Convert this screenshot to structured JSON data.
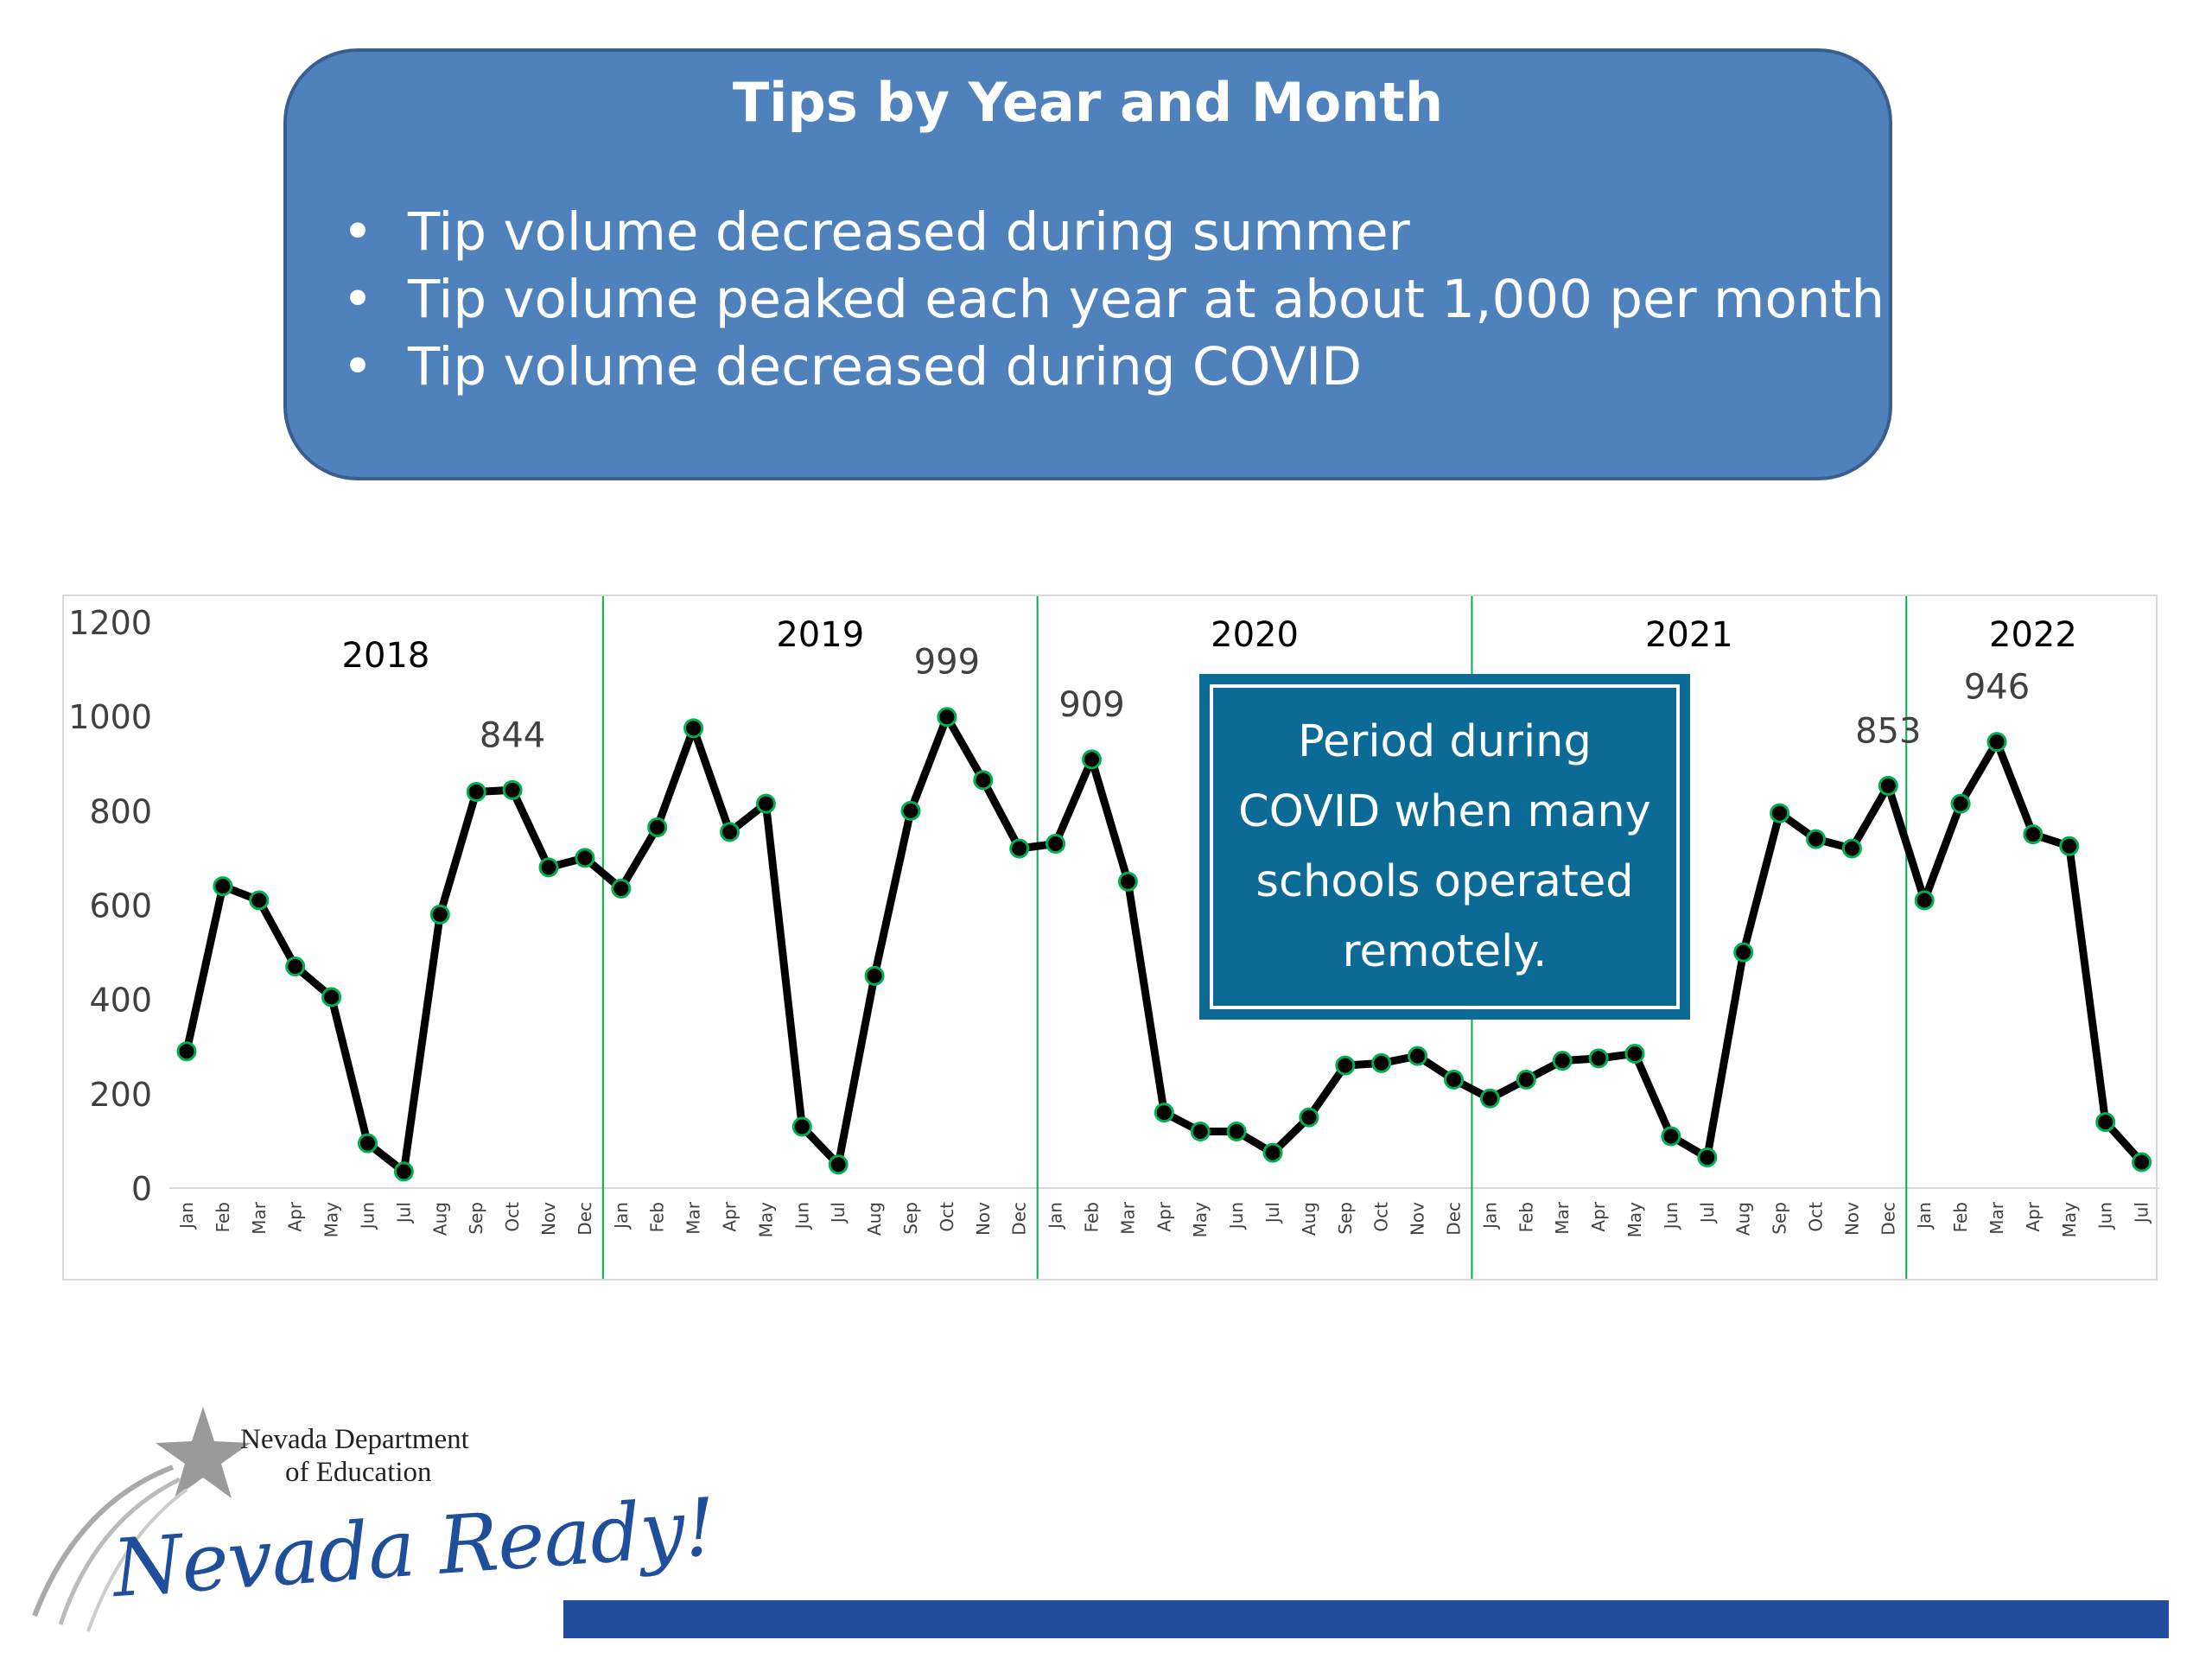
{
  "header": {
    "title": "Tips by Year and Month",
    "bullets": [
      "Tip volume decreased during summer",
      "Tip volume peaked each year at about 1,000 per month",
      "Tip volume decreased during COVID"
    ]
  },
  "annotation": {
    "text": "Period during COVID when many schools operated remotely."
  },
  "logo": {
    "org_line1": "Nevada Department",
    "org_line2": "of Education",
    "tagline": "Nevada Ready!"
  },
  "colors": {
    "header_fill": "#4f81bd",
    "annotation_fill": "#0b6a96",
    "line": "#000000",
    "marker": "#00b050",
    "year_divider": "#00b050",
    "footer_bar": "#244c9c"
  },
  "chart_data": {
    "type": "line",
    "title": "",
    "xlabel": "",
    "ylabel": "",
    "ylim": [
      0,
      1200
    ],
    "yticks": [
      0,
      200,
      400,
      600,
      800,
      1000,
      1200
    ],
    "grid": false,
    "years": [
      {
        "label": "2018",
        "start": 0
      },
      {
        "label": "2019",
        "start": 12
      },
      {
        "label": "2020",
        "start": 24
      },
      {
        "label": "2021",
        "start": 36
      },
      {
        "label": "2022",
        "start": 48
      }
    ],
    "categories": [
      "Jan",
      "Feb",
      "Mar",
      "Apr",
      "May",
      "Jun",
      "Jul",
      "Aug",
      "Sep",
      "Oct",
      "Nov",
      "Dec",
      "Jan",
      "Feb",
      "Mar",
      "Apr",
      "May",
      "Jun",
      "Jul",
      "Aug",
      "Sep",
      "Oct",
      "Nov",
      "Dec",
      "Jan",
      "Feb",
      "Mar",
      "Apr",
      "May",
      "Jun",
      "Jul",
      "Aug",
      "Sep",
      "Oct",
      "Nov",
      "Dec",
      "Jan",
      "Feb",
      "Mar",
      "Apr",
      "May",
      "Jun",
      "Jul",
      "Aug",
      "Sep",
      "Oct",
      "Nov",
      "Dec",
      "Jan",
      "Feb",
      "Mar",
      "Apr",
      "May",
      "Jun",
      "Jul"
    ],
    "series": [
      {
        "values": [
          290,
          640,
          610,
          470,
          405,
          95,
          35,
          580,
          840,
          844,
          680,
          700,
          635,
          765,
          975,
          755,
          815,
          130,
          50,
          450,
          800,
          999,
          865,
          720,
          730,
          909,
          650,
          160,
          120,
          120,
          75,
          150,
          260,
          265,
          280,
          230,
          190,
          230,
          270,
          275,
          285,
          110,
          65,
          500,
          795,
          740,
          720,
          853,
          610,
          815,
          946,
          750,
          725,
          140,
          55
        ]
      }
    ],
    "data_labels": [
      {
        "index": 9,
        "text": "844"
      },
      {
        "index": 21,
        "text": "999"
      },
      {
        "index": 25,
        "text": "909"
      },
      {
        "index": 47,
        "text": "853"
      },
      {
        "index": 50,
        "text": "946"
      }
    ]
  }
}
